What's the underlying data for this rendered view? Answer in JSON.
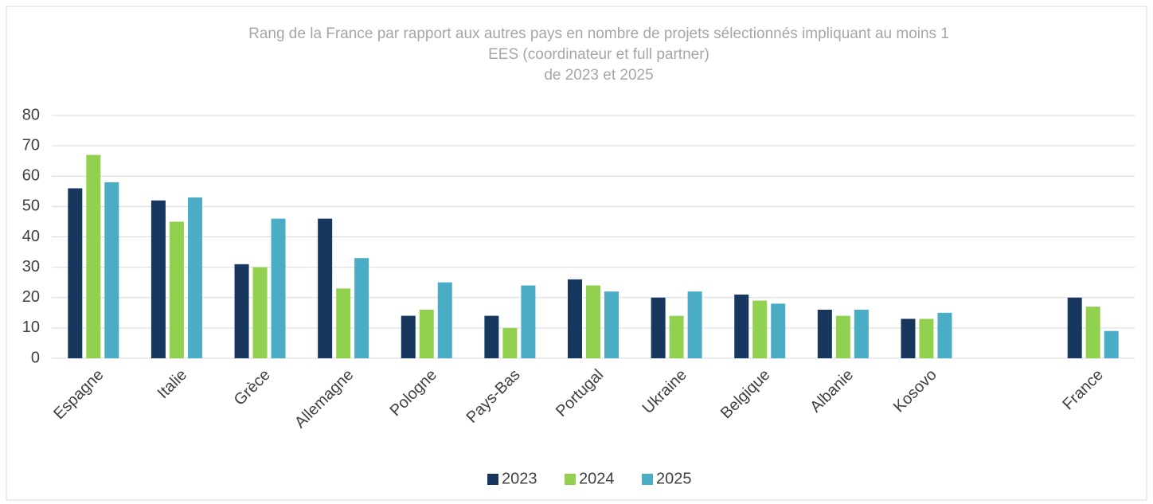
{
  "chart_data": {
    "type": "bar",
    "title": [
      "Rang de la France par rapport aux autres pays en nombre de projets sélectionnés impliquant au moins 1",
      "EES (coordinateur et full partner)",
      "de 2023 et 2025"
    ],
    "categories": [
      "Espagne",
      "Italie",
      "Grèce",
      "Allemagne",
      "Pologne",
      "Pays-Bas",
      "Portugal",
      "Ukraine",
      "Belgique",
      "Albanie",
      "Kosovo",
      null,
      "France"
    ],
    "series": [
      {
        "name": "2023",
        "color": "#17375e",
        "values": [
          56,
          52,
          31,
          46,
          14,
          14,
          26,
          20,
          21,
          16,
          13,
          null,
          20
        ]
      },
      {
        "name": "2024",
        "color": "#92d050",
        "values": [
          67,
          45,
          30,
          23,
          16,
          10,
          24,
          14,
          19,
          14,
          13,
          null,
          17
        ]
      },
      {
        "name": "2025",
        "color": "#4bacc6",
        "values": [
          58,
          53,
          46,
          33,
          25,
          24,
          22,
          22,
          18,
          16,
          15,
          null,
          9
        ]
      }
    ],
    "ylim": [
      0,
      80
    ],
    "yticks": [
      0,
      10,
      20,
      30,
      40,
      50,
      60,
      70,
      80
    ],
    "grid": true,
    "legend": "bottom"
  }
}
